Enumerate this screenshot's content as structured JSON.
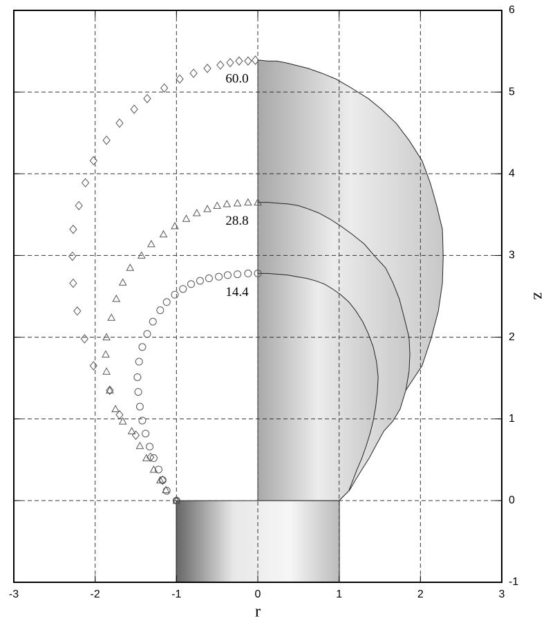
{
  "chart_data": {
    "type": "scatter",
    "xlabel": "r",
    "ylabel": "z",
    "xlim": [
      -3,
      3
    ],
    "ylim": [
      -1,
      6
    ],
    "xticks": [
      -3,
      -2,
      -1,
      0,
      1,
      2,
      3
    ],
    "yticks": [
      -1,
      0,
      1,
      2,
      3,
      4,
      5,
      6
    ],
    "grid": true,
    "annotations": [
      "14.4",
      "28.8",
      "60.0"
    ],
    "series": [
      {
        "marker": "circle",
        "color": "#555555",
        "x": [
          -1.0,
          -1.12,
          -1.17,
          -1.22,
          -1.28,
          -1.33,
          -1.38,
          -1.42,
          -1.45,
          -1.47,
          -1.48,
          -1.46,
          -1.42,
          -1.36,
          -1.29,
          -1.2,
          -1.12,
          -1.02,
          -0.92,
          -0.82,
          -0.71,
          -0.6,
          -0.48,
          -0.37,
          -0.25,
          -0.12,
          0
        ],
        "values": [
          0.0,
          0.12,
          0.25,
          0.38,
          0.52,
          0.66,
          0.82,
          0.98,
          1.15,
          1.33,
          1.51,
          1.7,
          1.88,
          2.04,
          2.19,
          2.33,
          2.43,
          2.52,
          2.59,
          2.65,
          2.69,
          2.72,
          2.74,
          2.76,
          2.77,
          2.78,
          2.78
        ]
      },
      {
        "marker": "triangle",
        "color": "#555555",
        "x": [
          -1.0,
          -1.13,
          -1.2,
          -1.28,
          -1.37,
          -1.45,
          -1.55,
          -1.66,
          -1.75,
          -1.82,
          -1.86,
          -1.87,
          -1.86,
          -1.8,
          -1.74,
          -1.66,
          -1.57,
          -1.43,
          -1.31,
          -1.16,
          -1.02,
          -0.88,
          -0.75,
          -0.62,
          -0.5,
          -0.38,
          -0.25,
          -0.12,
          0
        ],
        "values": [
          0.0,
          0.13,
          0.25,
          0.38,
          0.52,
          0.67,
          0.85,
          0.97,
          1.12,
          1.35,
          1.58,
          1.79,
          2.0,
          2.24,
          2.47,
          2.67,
          2.85,
          3.0,
          3.14,
          3.26,
          3.36,
          3.45,
          3.52,
          3.57,
          3.61,
          3.63,
          3.64,
          3.65,
          3.65
        ]
      },
      {
        "marker": "diamond",
        "color": "#555555",
        "x": [
          -1.0,
          -1.17,
          -1.32,
          -1.5,
          -1.7,
          -1.82,
          -2.02,
          -2.13,
          -2.22,
          -2.27,
          -2.28,
          -2.27,
          -2.2,
          -2.12,
          -2.02,
          -1.86,
          -1.7,
          -1.52,
          -1.36,
          -1.15,
          -0.96,
          -0.79,
          -0.62,
          -0.46,
          -0.34,
          -0.23,
          -0.12,
          -0.03
        ],
        "values": [
          0.0,
          0.25,
          0.53,
          0.8,
          1.05,
          1.35,
          1.65,
          1.98,
          2.32,
          2.66,
          2.99,
          3.32,
          3.61,
          3.89,
          4.16,
          4.41,
          4.62,
          4.79,
          4.92,
          5.05,
          5.16,
          5.23,
          5.29,
          5.33,
          5.36,
          5.38,
          5.38,
          5.39
        ]
      }
    ]
  }
}
